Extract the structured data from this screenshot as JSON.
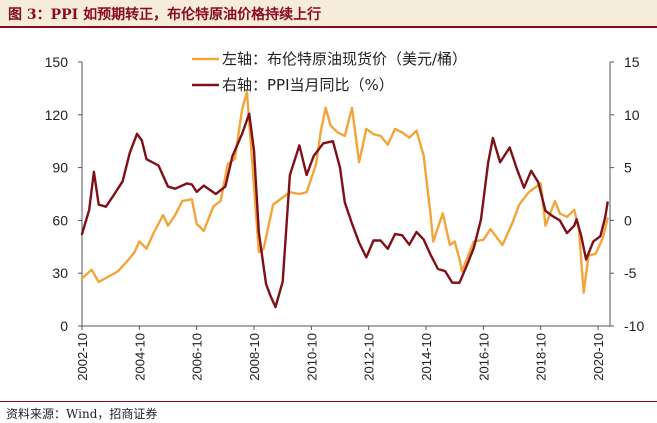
{
  "header": {
    "title": "图 3：PPI 如预期转正，布伦特原油价格持续上行"
  },
  "footer": {
    "source": "资料来源：Wind，招商证券"
  },
  "chart_data": {
    "type": "line",
    "title": "",
    "x_ticks": [
      "2002-10",
      "2004-10",
      "2006-10",
      "2008-10",
      "2010-10",
      "2012-10",
      "2014-10",
      "2016-10",
      "2018-10",
      "2020-10"
    ],
    "x_range": [
      "2002-10",
      "2021-03"
    ],
    "y_left": {
      "min": 0,
      "max": 150,
      "ticks": [
        0,
        30,
        60,
        90,
        120,
        150
      ]
    },
    "y_right": {
      "min": -10,
      "max": 15,
      "ticks": [
        -10,
        -5,
        0,
        5,
        10,
        15
      ]
    },
    "legend_position": "top",
    "colors": {
      "oil": "#f2a53a",
      "ppi": "#7f0f18",
      "header_bg": "#f5ecd9",
      "accent": "#8a0b1f"
    },
    "series": [
      {
        "name": "左轴：布伦特原油现货价（美元/桶）",
        "axis": "left",
        "color": "#f2a53a",
        "points": [
          [
            "2002-10",
            27
          ],
          [
            "2003-02",
            32
          ],
          [
            "2003-05",
            25
          ],
          [
            "2003-09",
            28
          ],
          [
            "2004-01",
            31
          ],
          [
            "2004-05",
            37
          ],
          [
            "2004-08",
            42
          ],
          [
            "2004-10",
            48
          ],
          [
            "2005-01",
            44
          ],
          [
            "2005-04",
            53
          ],
          [
            "2005-08",
            63
          ],
          [
            "2005-10",
            57
          ],
          [
            "2006-01",
            63
          ],
          [
            "2006-04",
            71
          ],
          [
            "2006-08",
            72
          ],
          [
            "2006-10",
            58
          ],
          [
            "2007-01",
            54
          ],
          [
            "2007-05",
            68
          ],
          [
            "2007-08",
            71
          ],
          [
            "2007-11",
            92
          ],
          [
            "2008-02",
            95
          ],
          [
            "2008-05",
            123
          ],
          [
            "2008-07",
            133
          ],
          [
            "2008-09",
            98
          ],
          [
            "2008-12",
            42
          ],
          [
            "2009-02",
            44
          ],
          [
            "2009-06",
            69
          ],
          [
            "2009-10",
            73
          ],
          [
            "2010-01",
            76
          ],
          [
            "2010-05",
            75
          ],
          [
            "2010-08",
            76
          ],
          [
            "2010-12",
            92
          ],
          [
            "2011-02",
            111
          ],
          [
            "2011-04",
            124
          ],
          [
            "2011-06",
            114
          ],
          [
            "2011-09",
            110
          ],
          [
            "2011-12",
            108
          ],
          [
            "2012-03",
            124
          ],
          [
            "2012-06",
            93
          ],
          [
            "2012-09",
            112
          ],
          [
            "2012-12",
            109
          ],
          [
            "2013-03",
            108
          ],
          [
            "2013-06",
            103
          ],
          [
            "2013-09",
            112
          ],
          [
            "2013-12",
            110
          ],
          [
            "2014-03",
            107
          ],
          [
            "2014-06",
            111
          ],
          [
            "2014-09",
            97
          ],
          [
            "2014-12",
            62
          ],
          [
            "2015-01",
            48
          ],
          [
            "2015-05",
            64
          ],
          [
            "2015-08",
            46
          ],
          [
            "2015-10",
            48
          ],
          [
            "2015-12",
            38
          ],
          [
            "2016-01",
            31
          ],
          [
            "2016-06",
            48
          ],
          [
            "2016-10",
            49
          ],
          [
            "2017-01",
            55
          ],
          [
            "2017-06",
            46
          ],
          [
            "2017-10",
            58
          ],
          [
            "2018-01",
            69
          ],
          [
            "2018-05",
            76
          ],
          [
            "2018-10",
            81
          ],
          [
            "2018-12",
            57
          ],
          [
            "2019-04",
            71
          ],
          [
            "2019-06",
            64
          ],
          [
            "2019-09",
            62
          ],
          [
            "2019-12",
            66
          ],
          [
            "2020-02",
            55
          ],
          [
            "2020-04",
            19
          ],
          [
            "2020-06",
            40
          ],
          [
            "2020-09",
            41
          ],
          [
            "2020-12",
            50
          ],
          [
            "2021-02",
            61
          ]
        ]
      },
      {
        "name": "右轴：PPI当月同比（%）",
        "axis": "right",
        "color": "#7f0f18",
        "points": [
          [
            "2002-10",
            -1.3
          ],
          [
            "2003-01",
            1.0
          ],
          [
            "2003-03",
            4.6
          ],
          [
            "2003-05",
            1.5
          ],
          [
            "2003-08",
            1.3
          ],
          [
            "2003-11",
            2.3
          ],
          [
            "2004-03",
            3.7
          ],
          [
            "2004-06",
            6.4
          ],
          [
            "2004-09",
            8.2
          ],
          [
            "2004-11",
            7.6
          ],
          [
            "2005-01",
            5.8
          ],
          [
            "2005-06",
            5.2
          ],
          [
            "2005-10",
            3.2
          ],
          [
            "2006-01",
            3.0
          ],
          [
            "2006-06",
            3.5
          ],
          [
            "2006-08",
            3.4
          ],
          [
            "2006-10",
            2.7
          ],
          [
            "2007-01",
            3.3
          ],
          [
            "2007-06",
            2.5
          ],
          [
            "2007-10",
            3.2
          ],
          [
            "2008-01",
            6.1
          ],
          [
            "2008-05",
            8.2
          ],
          [
            "2008-08",
            10.1
          ],
          [
            "2008-10",
            6.6
          ],
          [
            "2008-12",
            -1.1
          ],
          [
            "2009-03",
            -6.0
          ],
          [
            "2009-05",
            -7.2
          ],
          [
            "2009-07",
            -8.2
          ],
          [
            "2009-10",
            -5.8
          ],
          [
            "2010-01",
            4.3
          ],
          [
            "2010-05",
            7.1
          ],
          [
            "2010-08",
            4.3
          ],
          [
            "2010-11",
            6.1
          ],
          [
            "2011-03",
            7.3
          ],
          [
            "2011-07",
            7.5
          ],
          [
            "2011-10",
            5.0
          ],
          [
            "2011-12",
            1.7
          ],
          [
            "2012-03",
            -0.3
          ],
          [
            "2012-06",
            -2.1
          ],
          [
            "2012-09",
            -3.5
          ],
          [
            "2012-12",
            -1.9
          ],
          [
            "2013-03",
            -1.9
          ],
          [
            "2013-06",
            -2.7
          ],
          [
            "2013-09",
            -1.3
          ],
          [
            "2013-12",
            -1.4
          ],
          [
            "2014-03",
            -2.3
          ],
          [
            "2014-06",
            -1.1
          ],
          [
            "2014-09",
            -1.8
          ],
          [
            "2014-12",
            -3.3
          ],
          [
            "2015-03",
            -4.6
          ],
          [
            "2015-06",
            -4.8
          ],
          [
            "2015-09",
            -5.9
          ],
          [
            "2015-12",
            -5.9
          ],
          [
            "2016-03",
            -4.3
          ],
          [
            "2016-06",
            -2.6
          ],
          [
            "2016-09",
            0.1
          ],
          [
            "2016-12",
            5.5
          ],
          [
            "2017-02",
            7.8
          ],
          [
            "2017-05",
            5.5
          ],
          [
            "2017-09",
            6.9
          ],
          [
            "2017-12",
            4.9
          ],
          [
            "2018-03",
            3.1
          ],
          [
            "2018-06",
            4.7
          ],
          [
            "2018-09",
            3.6
          ],
          [
            "2018-12",
            0.9
          ],
          [
            "2019-03",
            0.4
          ],
          [
            "2019-06",
            0.0
          ],
          [
            "2019-09",
            -1.2
          ],
          [
            "2019-12",
            -0.5
          ],
          [
            "2020-01",
            0.1
          ],
          [
            "2020-03",
            -1.5
          ],
          [
            "2020-05",
            -3.7
          ],
          [
            "2020-08",
            -2.0
          ],
          [
            "2020-11",
            -1.5
          ],
          [
            "2021-01",
            0.3
          ],
          [
            "2021-02",
            1.7
          ]
        ]
      }
    ]
  }
}
